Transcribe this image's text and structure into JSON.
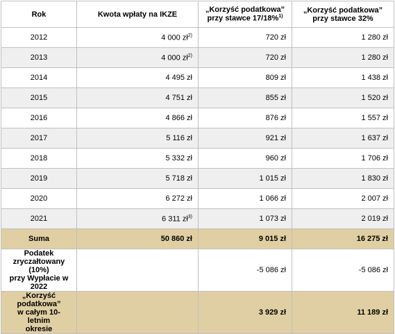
{
  "header": {
    "year": "Rok",
    "amount": "Kwota wpłaty na IKZE",
    "rate_17": [
      "„Korzyść podatkowa”",
      "przy stawce 17/18%"
    ],
    "rate_17_note": "1)",
    "rate_32": [
      "„Korzyść podatkowa”",
      "przy stawce 32%"
    ]
  },
  "rows": [
    {
      "year": "2012",
      "amount": "4 000 zł",
      "amount_note": "2)",
      "rate_17": "720 zł",
      "rate_32": "1 280 zł"
    },
    {
      "year": "2013",
      "amount": "4 000 zł",
      "amount_note": "2)",
      "rate_17": "720 zł",
      "rate_32": "1 280 zł"
    },
    {
      "year": "2014",
      "amount": "4 495 zł",
      "rate_17": "809 zł",
      "rate_32": "1 438 zł"
    },
    {
      "year": "2015",
      "amount": "4 751 zł",
      "rate_17": "855 zł",
      "rate_32": "1 520 zł"
    },
    {
      "year": "2016",
      "amount": "4 866 zł",
      "rate_17": "876 zł",
      "rate_32": "1 557 zł"
    },
    {
      "year": "2017",
      "amount": "5 116 zł",
      "rate_17": "921 zł",
      "rate_32": "1 637 zł"
    },
    {
      "year": "2018",
      "amount": "5 332 zł",
      "rate_17": "960 zł",
      "rate_32": "1 706 zł"
    },
    {
      "year": "2019",
      "amount": "5 718 zł",
      "rate_17": "1 015 zł",
      "rate_32": "1 830 zł"
    },
    {
      "year": "2020",
      "amount": "6 272 zł",
      "rate_17": "1 066 zł",
      "rate_32": "2 007 zł"
    },
    {
      "year": "2021",
      "amount": "6 311 zł",
      "amount_note": "3)",
      "rate_17": "1 073 zł",
      "rate_32": "2 019 zł"
    }
  ],
  "summary": {
    "label": "Suma",
    "amount": "50 860 zł",
    "rate_17": "9 015 zł",
    "rate_32": "16 275 zł"
  },
  "tax": {
    "label": [
      "Podatek zryczałtowany",
      "(10%)",
      "przy Wypłacie w 2022"
    ],
    "rate_17": "-5 086 zł",
    "rate_32": "-5 086 zł"
  },
  "total": {
    "label": [
      "„Korzyść podatkowa”",
      "w całym 10-letnim",
      "okresie"
    ],
    "rate_17": "3 929 zł",
    "rate_32": "11 189 zł"
  }
}
